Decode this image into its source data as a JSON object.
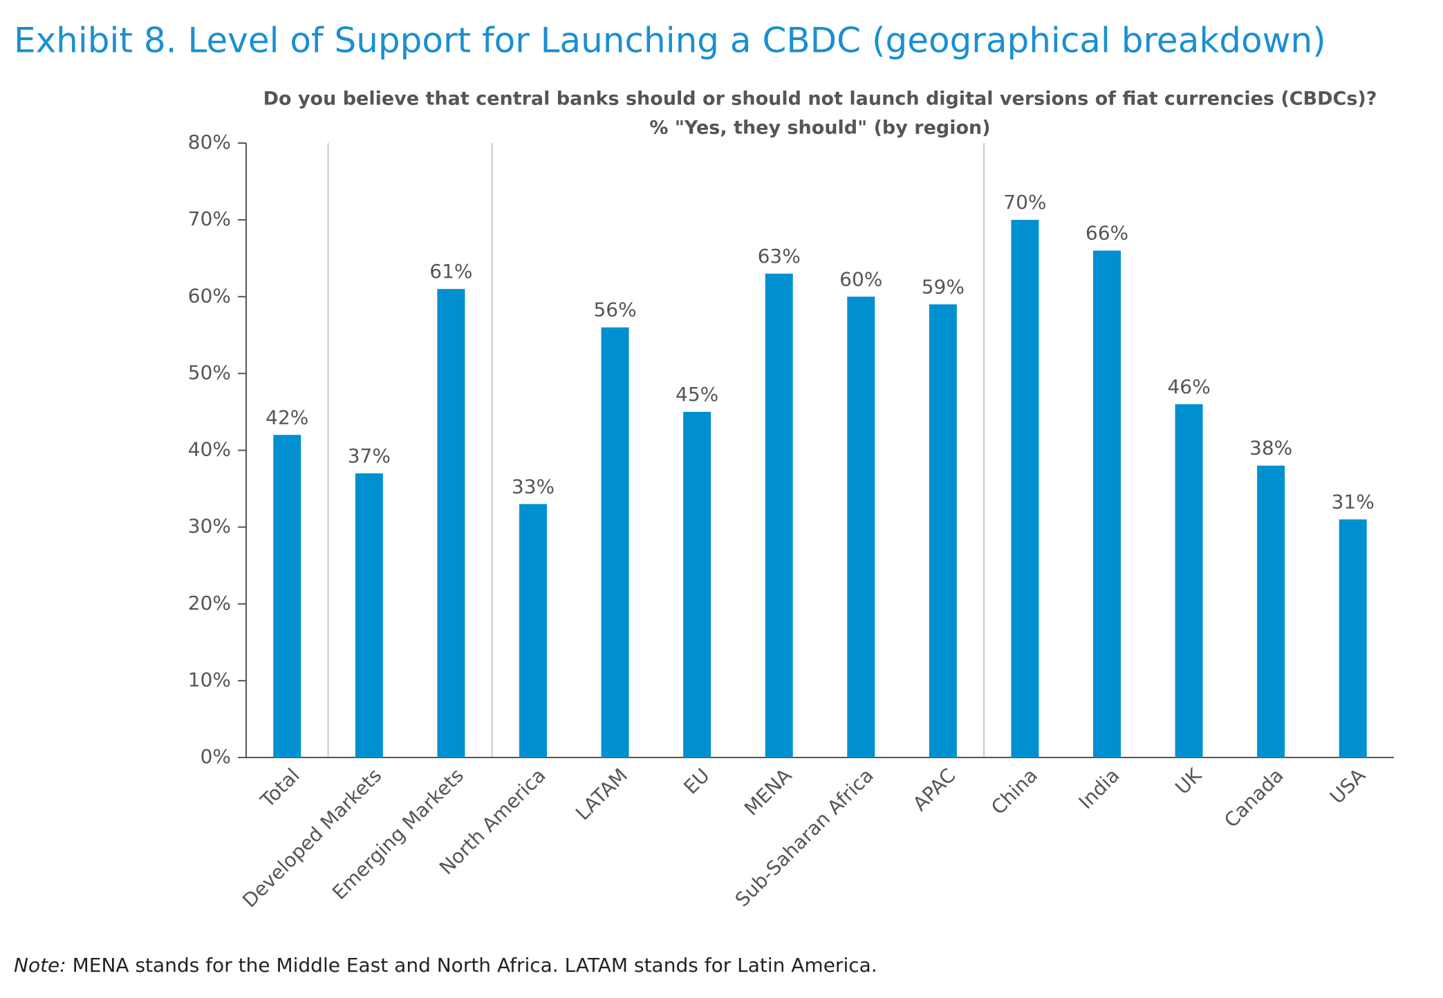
{
  "chart_data": {
    "type": "bar",
    "title": "Exhibit 8. Level of Support for Launching a CBDC (geographical breakdown)",
    "subtitle": [
      "Do you believe that central banks should or should not launch digital versions of fiat currencies (CBDCs)?",
      "% \"Yes, they should\" (by region)"
    ],
    "categories": [
      "Total",
      "Developed Markets",
      "Emerging Markets",
      "North America",
      "LATAM",
      "EU",
      "MENA",
      "Sub-Saharan Africa",
      "APAC",
      "China",
      "India",
      "UK",
      "Canada",
      "USA"
    ],
    "values": [
      42,
      37,
      61,
      33,
      56,
      45,
      63,
      60,
      59,
      70,
      66,
      46,
      38,
      31
    ],
    "value_labels": [
      "42%",
      "37%",
      "61%",
      "33%",
      "56%",
      "45%",
      "63%",
      "60%",
      "59%",
      "70%",
      "66%",
      "46%",
      "38%",
      "31%"
    ],
    "color": "#0090d0",
    "ylim": [
      0,
      80
    ],
    "yticks": [
      {
        "value": 0,
        "label": "0%"
      },
      {
        "value": 10,
        "label": "10%"
      },
      {
        "value": 20,
        "label": "20%"
      },
      {
        "value": 30,
        "label": "30%"
      },
      {
        "value": 40,
        "label": "40%"
      },
      {
        "value": 50,
        "label": "50%"
      },
      {
        "value": 60,
        "label": "60%"
      },
      {
        "value": 70,
        "label": "70%"
      },
      {
        "value": 80,
        "label": "80%"
      }
    ],
    "grid": false
  },
  "note": {
    "label": "Note:",
    "text": " MENA stands for the Middle East and North Africa. LATAM stands for Latin America."
  }
}
